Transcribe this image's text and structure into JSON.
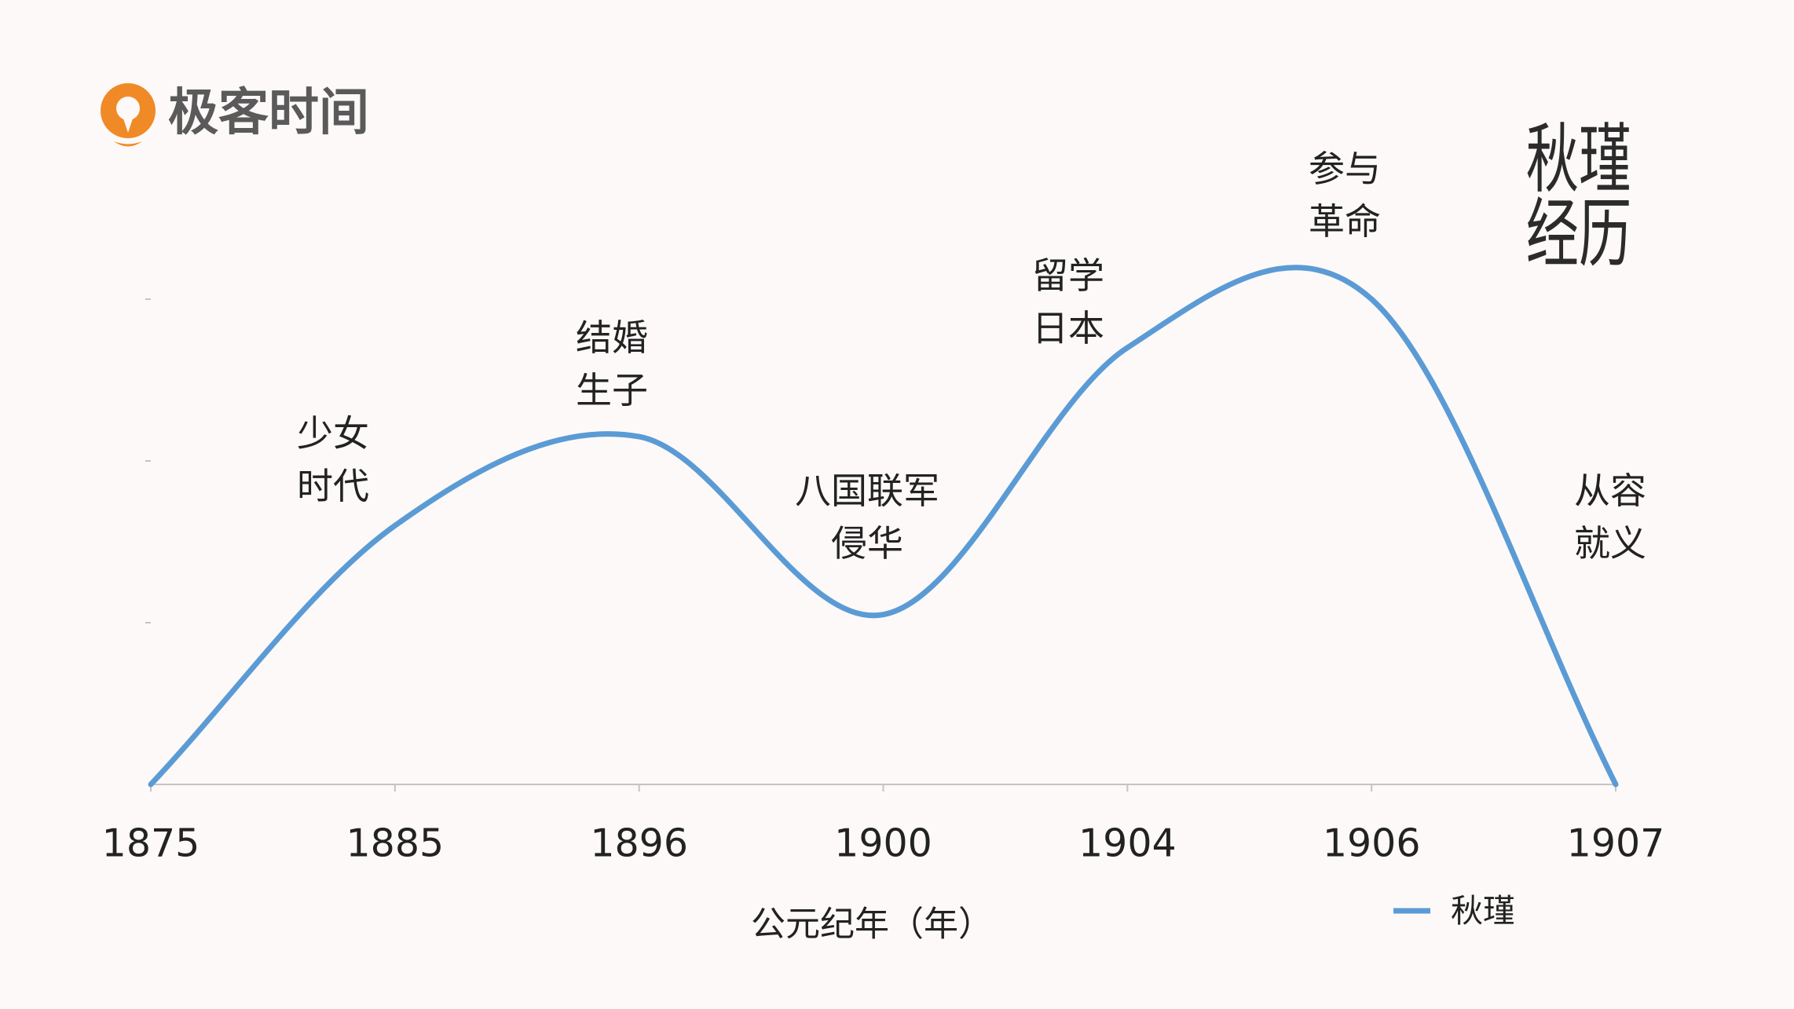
{
  "logo": {
    "text": "极客时间",
    "icon": "geekbang-logo-icon",
    "icon_color": "#f08a26"
  },
  "colors": {
    "background": "#fcf9f8",
    "text": "#222222",
    "axis": "#c4c4c4"
  },
  "chart_data": {
    "type": "line",
    "title": "秋瑾经历",
    "categories": [
      "1875",
      "1885",
      "1896",
      "1900",
      "1904",
      "1906",
      "1907"
    ],
    "series": [
      {
        "name": "秋瑾",
        "values": [
          0,
          1.6,
          2.15,
          1.05,
          2.7,
          3.0,
          0
        ],
        "color": "#5b9bd5",
        "smooth": true
      }
    ],
    "xlabel": "公元纪年（年）",
    "ylabel": "",
    "ylim": [
      0,
      4
    ],
    "yticks": [
      1,
      2,
      3
    ],
    "ytick_labels": false,
    "grid": false,
    "legend": "bottom-right",
    "annotations": [
      "少女时代",
      "结婚生子",
      "八国联军侵华",
      "留学日本",
      "参与革命",
      "从容就义"
    ]
  }
}
